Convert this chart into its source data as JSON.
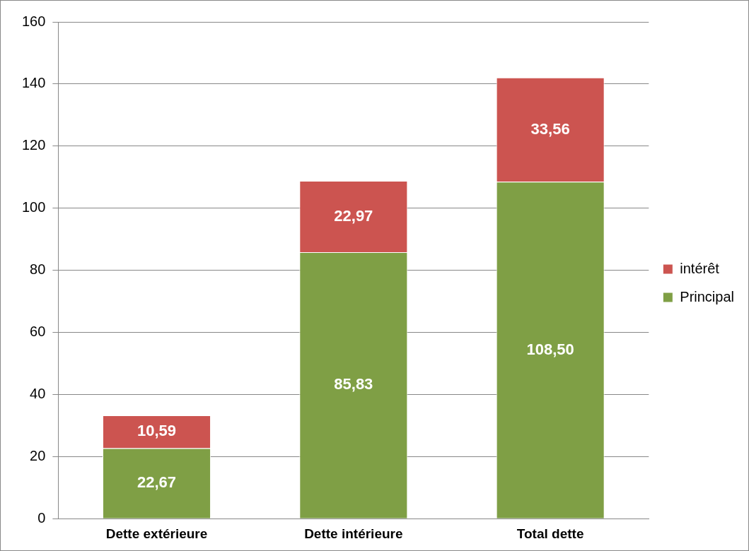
{
  "chart_data": {
    "type": "bar",
    "stacked": true,
    "categories": [
      "Dette extérieure",
      "Dette intérieure",
      "Total dette"
    ],
    "series": [
      {
        "name": "Principal",
        "color": "#7f9f45",
        "values": [
          22.67,
          85.83,
          108.5
        ],
        "value_labels": [
          "22,67",
          "85,83",
          "108,50"
        ]
      },
      {
        "name": "intérêt",
        "color": "#cc5450",
        "values": [
          10.59,
          22.97,
          33.56
        ],
        "value_labels": [
          "10,59",
          "22,97",
          "33,56"
        ]
      }
    ],
    "ylim": [
      0,
      160
    ],
    "yticks": [
      0,
      20,
      40,
      60,
      80,
      100,
      120,
      140,
      160
    ],
    "grid": "y",
    "legend": "right"
  }
}
